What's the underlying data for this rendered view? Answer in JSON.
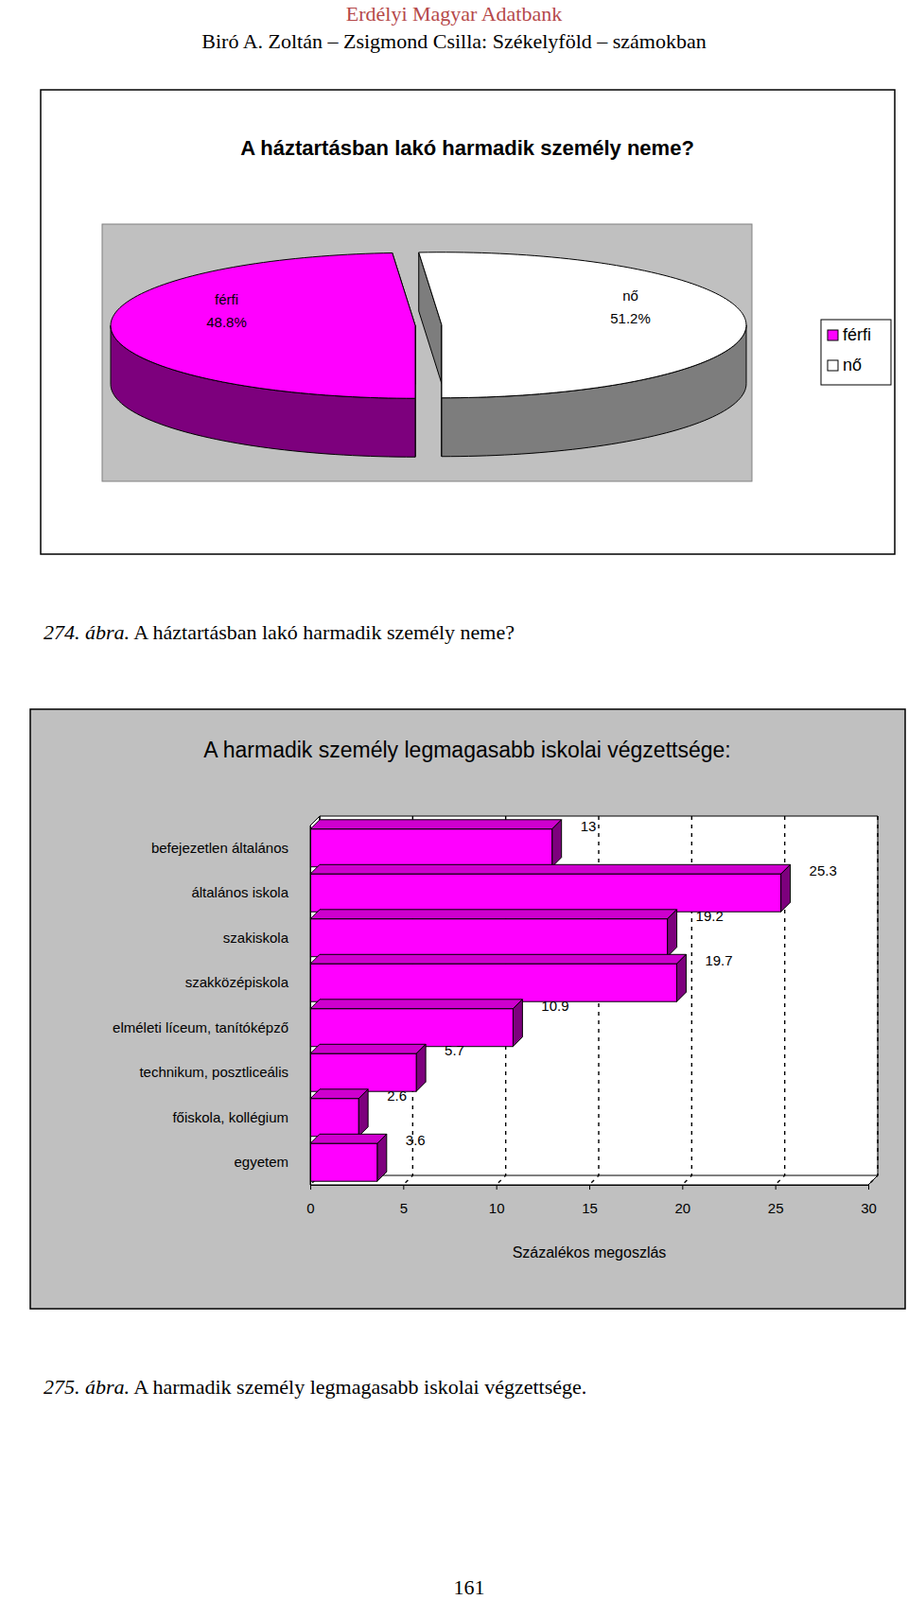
{
  "header": {
    "title": "Erdélyi Magyar Adatbank",
    "subtitle": "Biró A. Zoltán – Zsigmond Csilla: Székelyföld – számokban"
  },
  "chart_data": [
    {
      "type": "pie",
      "title": "A háztartásban lakó harmadik személy neme?",
      "categories": [
        "férfi",
        "nő"
      ],
      "values": [
        48.8,
        51.2
      ],
      "value_labels": [
        "48.8%",
        "51.2%"
      ],
      "colors": [
        "#ff00ff",
        "#ffffff"
      ],
      "legend": "right",
      "data_labels": true
    },
    {
      "type": "bar",
      "orientation": "horizontal",
      "title": "A harmadik személy legmagasabb iskolai végzettsége:",
      "categories": [
        "befejezetlen általános",
        "általános iskola",
        "szakiskola",
        "szakközépiskola",
        "elméleti líceum, tanítóképző",
        "technikum, posztliceális",
        "főiskola, kollégium",
        "egyetem"
      ],
      "values": [
        13,
        25.3,
        19.2,
        19.7,
        10.9,
        5.7,
        2.6,
        3.6
      ],
      "color": "#ff00ff",
      "xlim": [
        0,
        30
      ],
      "xticks": [
        0,
        5,
        10,
        15,
        20,
        25,
        30
      ],
      "x_label": "Százalékos megoszlás",
      "grid": true,
      "data_labels": true
    }
  ],
  "captions": [
    {
      "number": "274. ábra.",
      "text": "A háztartásban lakó harmadik személy neme?"
    },
    {
      "number": "275. ábra.",
      "text": "A harmadik személy legmagasabb iskolai végzettsége."
    }
  ],
  "page_number": "161"
}
